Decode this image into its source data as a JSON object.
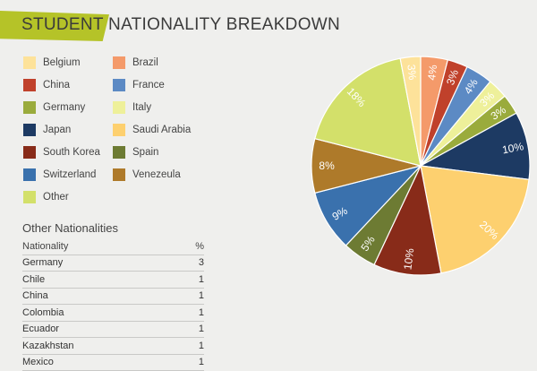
{
  "header": {
    "title": "STUDENT NATIONALITY BREAKDOWN"
  },
  "legend": [
    {
      "label": "Belgium",
      "color": "#fde29a"
    },
    {
      "label": "Brazil",
      "color": "#f49a6a"
    },
    {
      "label": "China",
      "color": "#c0412b"
    },
    {
      "label": "France",
      "color": "#5c8ac4"
    },
    {
      "label": "Germany",
      "color": "#9aab3c"
    },
    {
      "label": "Italy",
      "color": "#eef09a"
    },
    {
      "label": "Japan",
      "color": "#1d3a63"
    },
    {
      "label": "Saudi Arabia",
      "color": "#fdd06f"
    },
    {
      "label": "South Korea",
      "color": "#882b19"
    },
    {
      "label": "Spain",
      "color": "#6d7b33"
    },
    {
      "label": "Switzerland",
      "color": "#3a71ad"
    },
    {
      "label": "Venezeula",
      "color": "#ae7a2a"
    },
    {
      "label": "Other",
      "color": "#d3e06a"
    }
  ],
  "other_table": {
    "title": "Other Nationalities",
    "headers": [
      "Nationality",
      "%"
    ],
    "rows": [
      [
        "Germany",
        "3"
      ],
      [
        "Chile",
        "1"
      ],
      [
        "China",
        "1"
      ],
      [
        "Colombia",
        "1"
      ],
      [
        "Ecuador",
        "1"
      ],
      [
        "Kazakhstan",
        "1"
      ],
      [
        "Mexico",
        "1"
      ]
    ]
  },
  "chart_data": {
    "type": "pie",
    "title": "STUDENT NATIONALITY BREAKDOWN",
    "slices": [
      {
        "label": "Brazil",
        "value": 4,
        "color": "#f49a6a",
        "display": "4%"
      },
      {
        "label": "China",
        "value": 3,
        "color": "#c0412b",
        "display": "3%"
      },
      {
        "label": "France",
        "value": 4,
        "color": "#5c8ac4",
        "display": "4%"
      },
      {
        "label": "Italy",
        "value": 3,
        "color": "#eef09a",
        "display": "3%"
      },
      {
        "label": "Germany",
        "value": 3,
        "color": "#9aab3c",
        "display": "3%"
      },
      {
        "label": "Japan",
        "value": 10,
        "color": "#1d3a63",
        "display": "10%"
      },
      {
        "label": "Saudi Arabia",
        "value": 20,
        "color": "#fdd06f",
        "display": "20%"
      },
      {
        "label": "South Korea",
        "value": 10,
        "color": "#882b19",
        "display": "10%"
      },
      {
        "label": "Spain",
        "value": 5,
        "color": "#6d7b33",
        "display": "5%"
      },
      {
        "label": "Switzerland",
        "value": 9,
        "color": "#3a71ad",
        "display": "9%"
      },
      {
        "label": "Venezeula",
        "value": 8,
        "color": "#ae7a2a",
        "display": "8%"
      },
      {
        "label": "Other",
        "value": 18,
        "color": "#d3e06a",
        "display": "18%"
      },
      {
        "label": "Belgium",
        "value": 3,
        "color": "#fde29a",
        "display": "3%"
      }
    ]
  }
}
